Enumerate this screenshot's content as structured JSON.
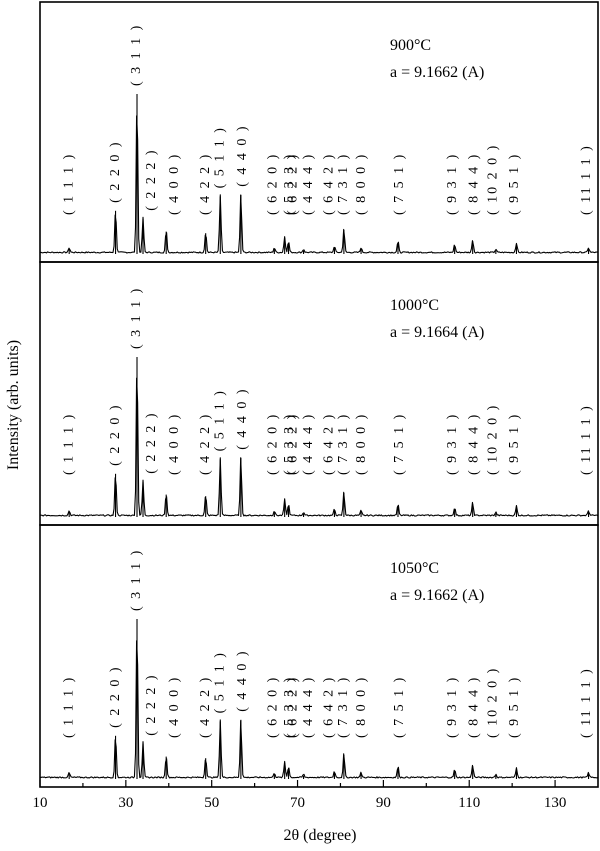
{
  "chart_data": {
    "type": "line",
    "xlabel": "2θ (degree)",
    "ylabel": "Intensity (arb. units)",
    "xlim": [
      10,
      140
    ],
    "xticks": [
      "10",
      "30",
      "50",
      "70",
      "90",
      "110",
      "130"
    ],
    "xtick_values": [
      10,
      30,
      50,
      70,
      90,
      110,
      130
    ],
    "peaks": [
      {
        "hkl": "( 1 1 1 )",
        "two_theta": 16.8,
        "intensity": 3
      },
      {
        "hkl": "( 2 2 0 )",
        "two_theta": 27.6,
        "intensity": 27
      },
      {
        "hkl": "( 3 1 1 )",
        "two_theta": 32.6,
        "intensity": 100
      },
      {
        "hkl": "( 2 2 2 )",
        "two_theta": 34.0,
        "intensity": 22
      },
      {
        "hkl": "( 4 0 0 )",
        "two_theta": 39.4,
        "intensity": 14
      },
      {
        "hkl": "( 4 2 2 )",
        "two_theta": 48.6,
        "intensity": 13
      },
      {
        "hkl": "( 5 1 1 )",
        "two_theta": 52.0,
        "intensity": 36
      },
      {
        "hkl": "( 4 4 0 )",
        "two_theta": 56.8,
        "intensity": 37
      },
      {
        "hkl": "( 6 2 0 )",
        "two_theta": 64.6,
        "intensity": 3
      },
      {
        "hkl": "( 5 3 3 )",
        "two_theta": 67.0,
        "intensity": 10
      },
      {
        "hkl": "( 6 2 2 )",
        "two_theta": 67.9,
        "intensity": 7
      },
      {
        "hkl": "( 4 4 4 )",
        "two_theta": 71.4,
        "intensity": 2
      },
      {
        "hkl": "( 6 4 2 )",
        "two_theta": 78.6,
        "intensity": 4
      },
      {
        "hkl": "( 7 3 1 )",
        "two_theta": 80.8,
        "intensity": 15
      },
      {
        "hkl": "( 8 0 0 )",
        "two_theta": 84.8,
        "intensity": 3
      },
      {
        "hkl": "( 7 5 1 )",
        "two_theta": 93.4,
        "intensity": 7
      },
      {
        "hkl": "( 9 3 1 )",
        "two_theta": 106.6,
        "intensity": 5
      },
      {
        "hkl": "( 8 4 4 )",
        "two_theta": 110.8,
        "intensity": 8
      },
      {
        "hkl": "( 10 2 0 )",
        "two_theta": 116.2,
        "intensity": 2
      },
      {
        "hkl": "( 9 5 1 )",
        "two_theta": 121.0,
        "intensity": 6
      },
      {
        "hkl": "( 11 1 1 )",
        "two_theta": 137.8,
        "intensity": 3
      }
    ],
    "series": [
      {
        "temperature": "900°C",
        "lattice": "a = 9.1662 (A)",
        "lattice_value": 9.1662
      },
      {
        "temperature": "1000°C",
        "lattice": "a = 9.1664 (A)",
        "lattice_value": 9.1664
      },
      {
        "temperature": "1050°C",
        "lattice": "a = 9.1662 (A)",
        "lattice_value": 9.1662
      }
    ]
  },
  "labels": {
    "peak_hkl": [
      {
        "n": "( 1 1 1 )",
        "x": 16.8
      },
      {
        "n": "( 2 2 0 )",
        "x": 27.6
      },
      {
        "n": "( 3 1 1 )",
        "x": 32.6
      },
      {
        "n": "( 2 2 2 )",
        "x": 36.0
      },
      {
        "n": "( 4 0 0 )",
        "x": 41.4
      },
      {
        "n": "( 4 2 2 )",
        "x": 48.6
      },
      {
        "n": "( 5 1 1 )",
        "x": 52.0
      },
      {
        "n": "( 4 4 0 )",
        "x": 57.2
      },
      {
        "n": "( 6 2 0 )",
        "x": 64.4
      },
      {
        "n": "( 5 3 3 )",
        "x": 68.2
      },
      {
        "n": "( 6 2 2 )",
        "x": 69.0
      },
      {
        "n": "( 4 4 4 )",
        "x": 72.6
      },
      {
        "n": "( 6 4 2 )",
        "x": 77.4
      },
      {
        "n": "( 7 3 1 )",
        "x": 80.8
      },
      {
        "n": "( 8 0 0 )",
        "x": 85.0
      },
      {
        "n": "( 7 5 1 )",
        "x": 93.8
      },
      {
        "n": "( 9 3 1 )",
        "x": 106.2
      },
      {
        "n": "( 8 4 4 )",
        "x": 111.2
      },
      {
        "n": "( 10 2 0 )",
        "x": 115.6
      },
      {
        "n": "( 9 5 1 )",
        "x": 120.6
      },
      {
        "n": "( 11 1 1 )",
        "x": 137.4
      }
    ]
  }
}
